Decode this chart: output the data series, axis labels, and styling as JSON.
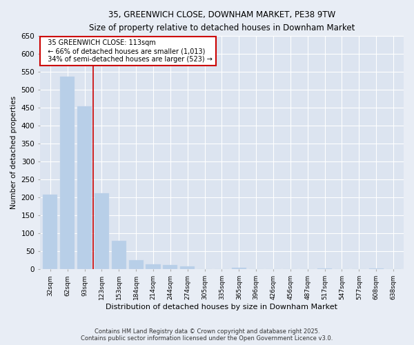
{
  "title": "35, GREENWICH CLOSE, DOWNHAM MARKET, PE38 9TW",
  "subtitle": "Size of property relative to detached houses in Downham Market",
  "xlabel": "Distribution of detached houses by size in Downham Market",
  "ylabel": "Number of detached properties",
  "footnote1": "Contains HM Land Registry data © Crown copyright and database right 2025.",
  "footnote2": "Contains public sector information licensed under the Open Government Licence v3.0.",
  "annotation_line1": "35 GREENWICH CLOSE: 113sqm",
  "annotation_line2": "← 66% of detached houses are smaller (1,013)",
  "annotation_line3": "34% of semi-detached houses are larger (523) →",
  "bar_color": "#b8cfe8",
  "redline_x": 2.5,
  "categories": [
    "32sqm",
    "62sqm",
    "93sqm",
    "123sqm",
    "153sqm",
    "184sqm",
    "214sqm",
    "244sqm",
    "274sqm",
    "305sqm",
    "335sqm",
    "365sqm",
    "396sqm",
    "426sqm",
    "456sqm",
    "487sqm",
    "517sqm",
    "547sqm",
    "577sqm",
    "608sqm",
    "638sqm"
  ],
  "values": [
    208,
    537,
    455,
    213,
    80,
    25,
    15,
    12,
    9,
    0,
    0,
    5,
    0,
    0,
    0,
    0,
    3,
    0,
    0,
    3,
    0
  ],
  "ylim": [
    0,
    650
  ],
  "yticks": [
    0,
    50,
    100,
    150,
    200,
    250,
    300,
    350,
    400,
    450,
    500,
    550,
    600,
    650
  ],
  "bg_color": "#e8edf5",
  "plot_bg_color": "#dce4f0",
  "grid_color": "#ffffff",
  "redline_color": "#cc0000"
}
